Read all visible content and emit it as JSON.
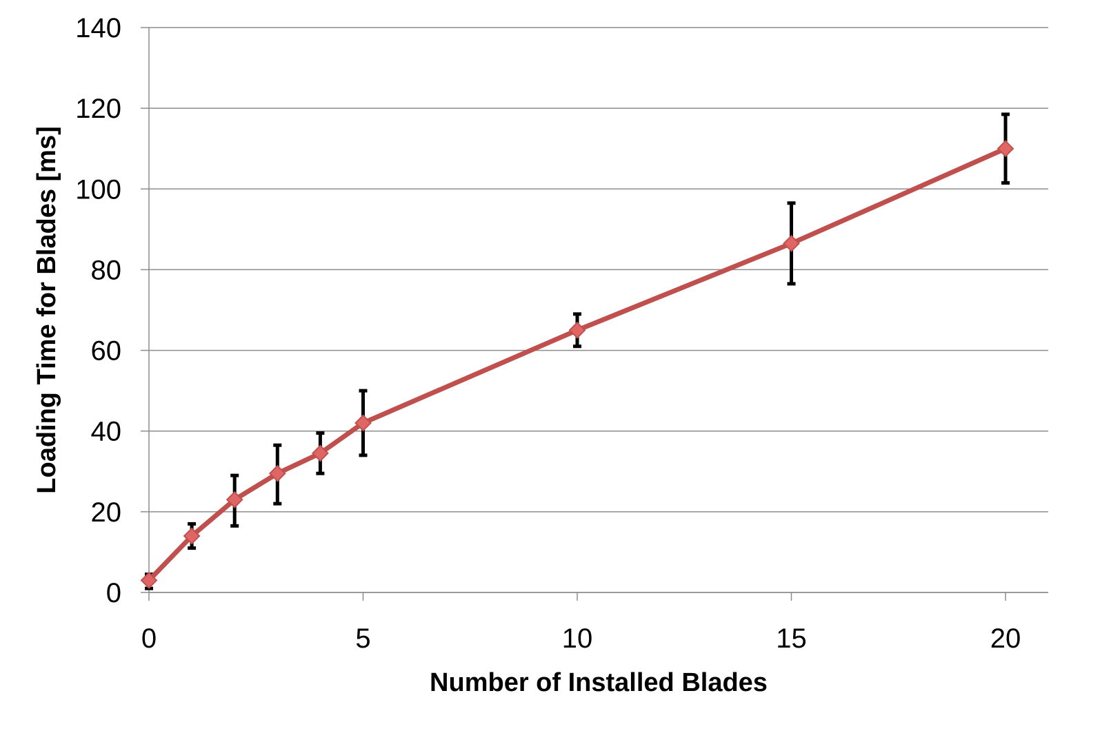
{
  "chart_data": {
    "type": "line",
    "xlabel": "Number of Installed Blades",
    "ylabel": "Loading Time for Blades [ms]",
    "xlim": [
      0,
      21
    ],
    "ylim": [
      0,
      140
    ],
    "xticks": [
      0,
      5,
      10,
      15,
      20
    ],
    "yticks": [
      0,
      20,
      40,
      60,
      80,
      100,
      120,
      140
    ],
    "grid": "horizontal",
    "legend": "none",
    "series": [
      {
        "color": "#c0504d",
        "marker_color": "#e06666",
        "x": [
          0,
          1,
          2,
          3,
          4,
          5,
          10,
          15,
          20
        ],
        "y": [
          3,
          14,
          23,
          29.5,
          34.5,
          42,
          65,
          86.5,
          110
        ],
        "error_low": [
          1,
          11,
          16.5,
          22,
          29.5,
          34,
          61,
          76.5,
          101.5
        ],
        "error_high": [
          4.5,
          17,
          29,
          36.5,
          39.5,
          50,
          69,
          96.5,
          118.5
        ]
      }
    ],
    "colors": {
      "grid": "#8c8c8c",
      "axis": "#8c8c8c",
      "error_bar": "#000000"
    }
  }
}
